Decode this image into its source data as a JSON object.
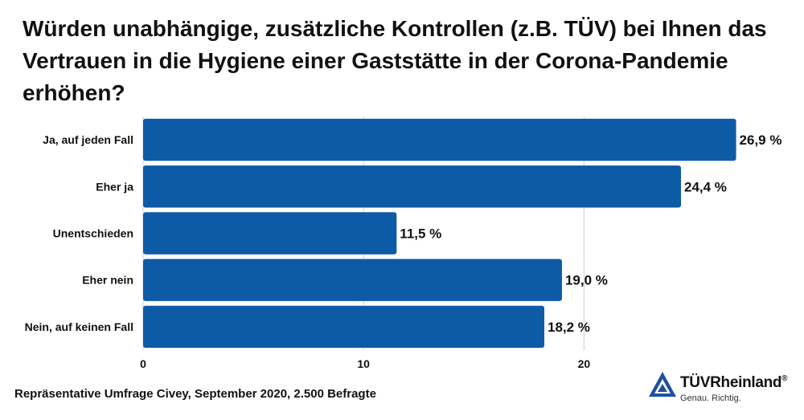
{
  "title": "Würden unabhängige, zusätzliche Kontrollen (z.B. TÜV) bei Ihnen das Vertrauen in die Hygiene einer Gaststätte in der Corona-Pandemie erhöhen?",
  "source": "Repräsentative Umfrage Civey, September 2020, 2.500 Befragte",
  "logo": {
    "brand": "TÜVRheinland",
    "registered": "®",
    "slogan": "Genau. Richtig.",
    "color": "#1f4fa3"
  },
  "colors": {
    "bar": "#0d5aa7",
    "grid": "#cfcfcf"
  },
  "chart_data": {
    "type": "bar",
    "orientation": "horizontal",
    "categories": [
      "Ja, auf jeden Fall",
      "Eher ja",
      "Unentschieden",
      "Eher nein",
      "Nein, auf keinen Fall"
    ],
    "values": [
      26.9,
      24.4,
      11.5,
      19.0,
      18.2
    ],
    "value_labels": [
      "26,9 %",
      "24,4 %",
      "11,5 %",
      "19,0 %",
      "18,2 %"
    ],
    "xlim": [
      0,
      27.5
    ],
    "xticks": [
      0,
      10,
      20
    ],
    "grid": true
  }
}
